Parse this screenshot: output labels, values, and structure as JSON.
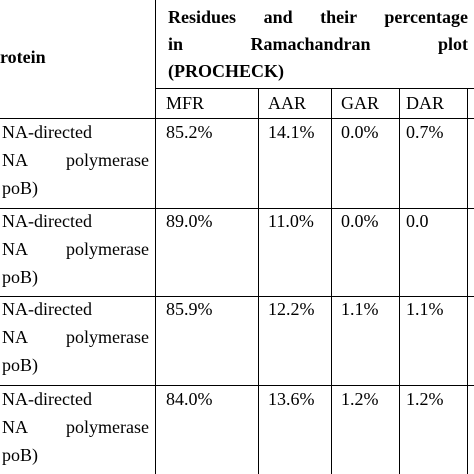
{
  "table": {
    "protein_header": "rotein",
    "residues_header": [
      "Residues and their percentage",
      "in Ramachandran plot",
      "(PROCHECK)"
    ],
    "subheaders": [
      "MFR",
      "AAR",
      "GAR",
      "DAR"
    ],
    "rows": [
      {
        "protein": [
          "NA-directed",
          "NA polymerase",
          "poB)"
        ],
        "values": [
          "85.2%",
          "14.1%",
          "0.0%",
          "0.7%"
        ]
      },
      {
        "protein": [
          "NA-directed",
          "NA polymerase",
          "poB)"
        ],
        "values": [
          "89.0%",
          "11.0%",
          "0.0%",
          "0.0"
        ]
      },
      {
        "protein": [
          "NA-directed",
          "NA polymerase",
          "poB)"
        ],
        "values": [
          "85.9%",
          "12.2%",
          "1.1%",
          "1.1%"
        ]
      },
      {
        "protein": [
          "NA-directed",
          "NA polymerase",
          "poB)"
        ],
        "values": [
          "84.0%",
          "13.6%",
          "1.2%",
          "1.2%"
        ]
      }
    ]
  }
}
